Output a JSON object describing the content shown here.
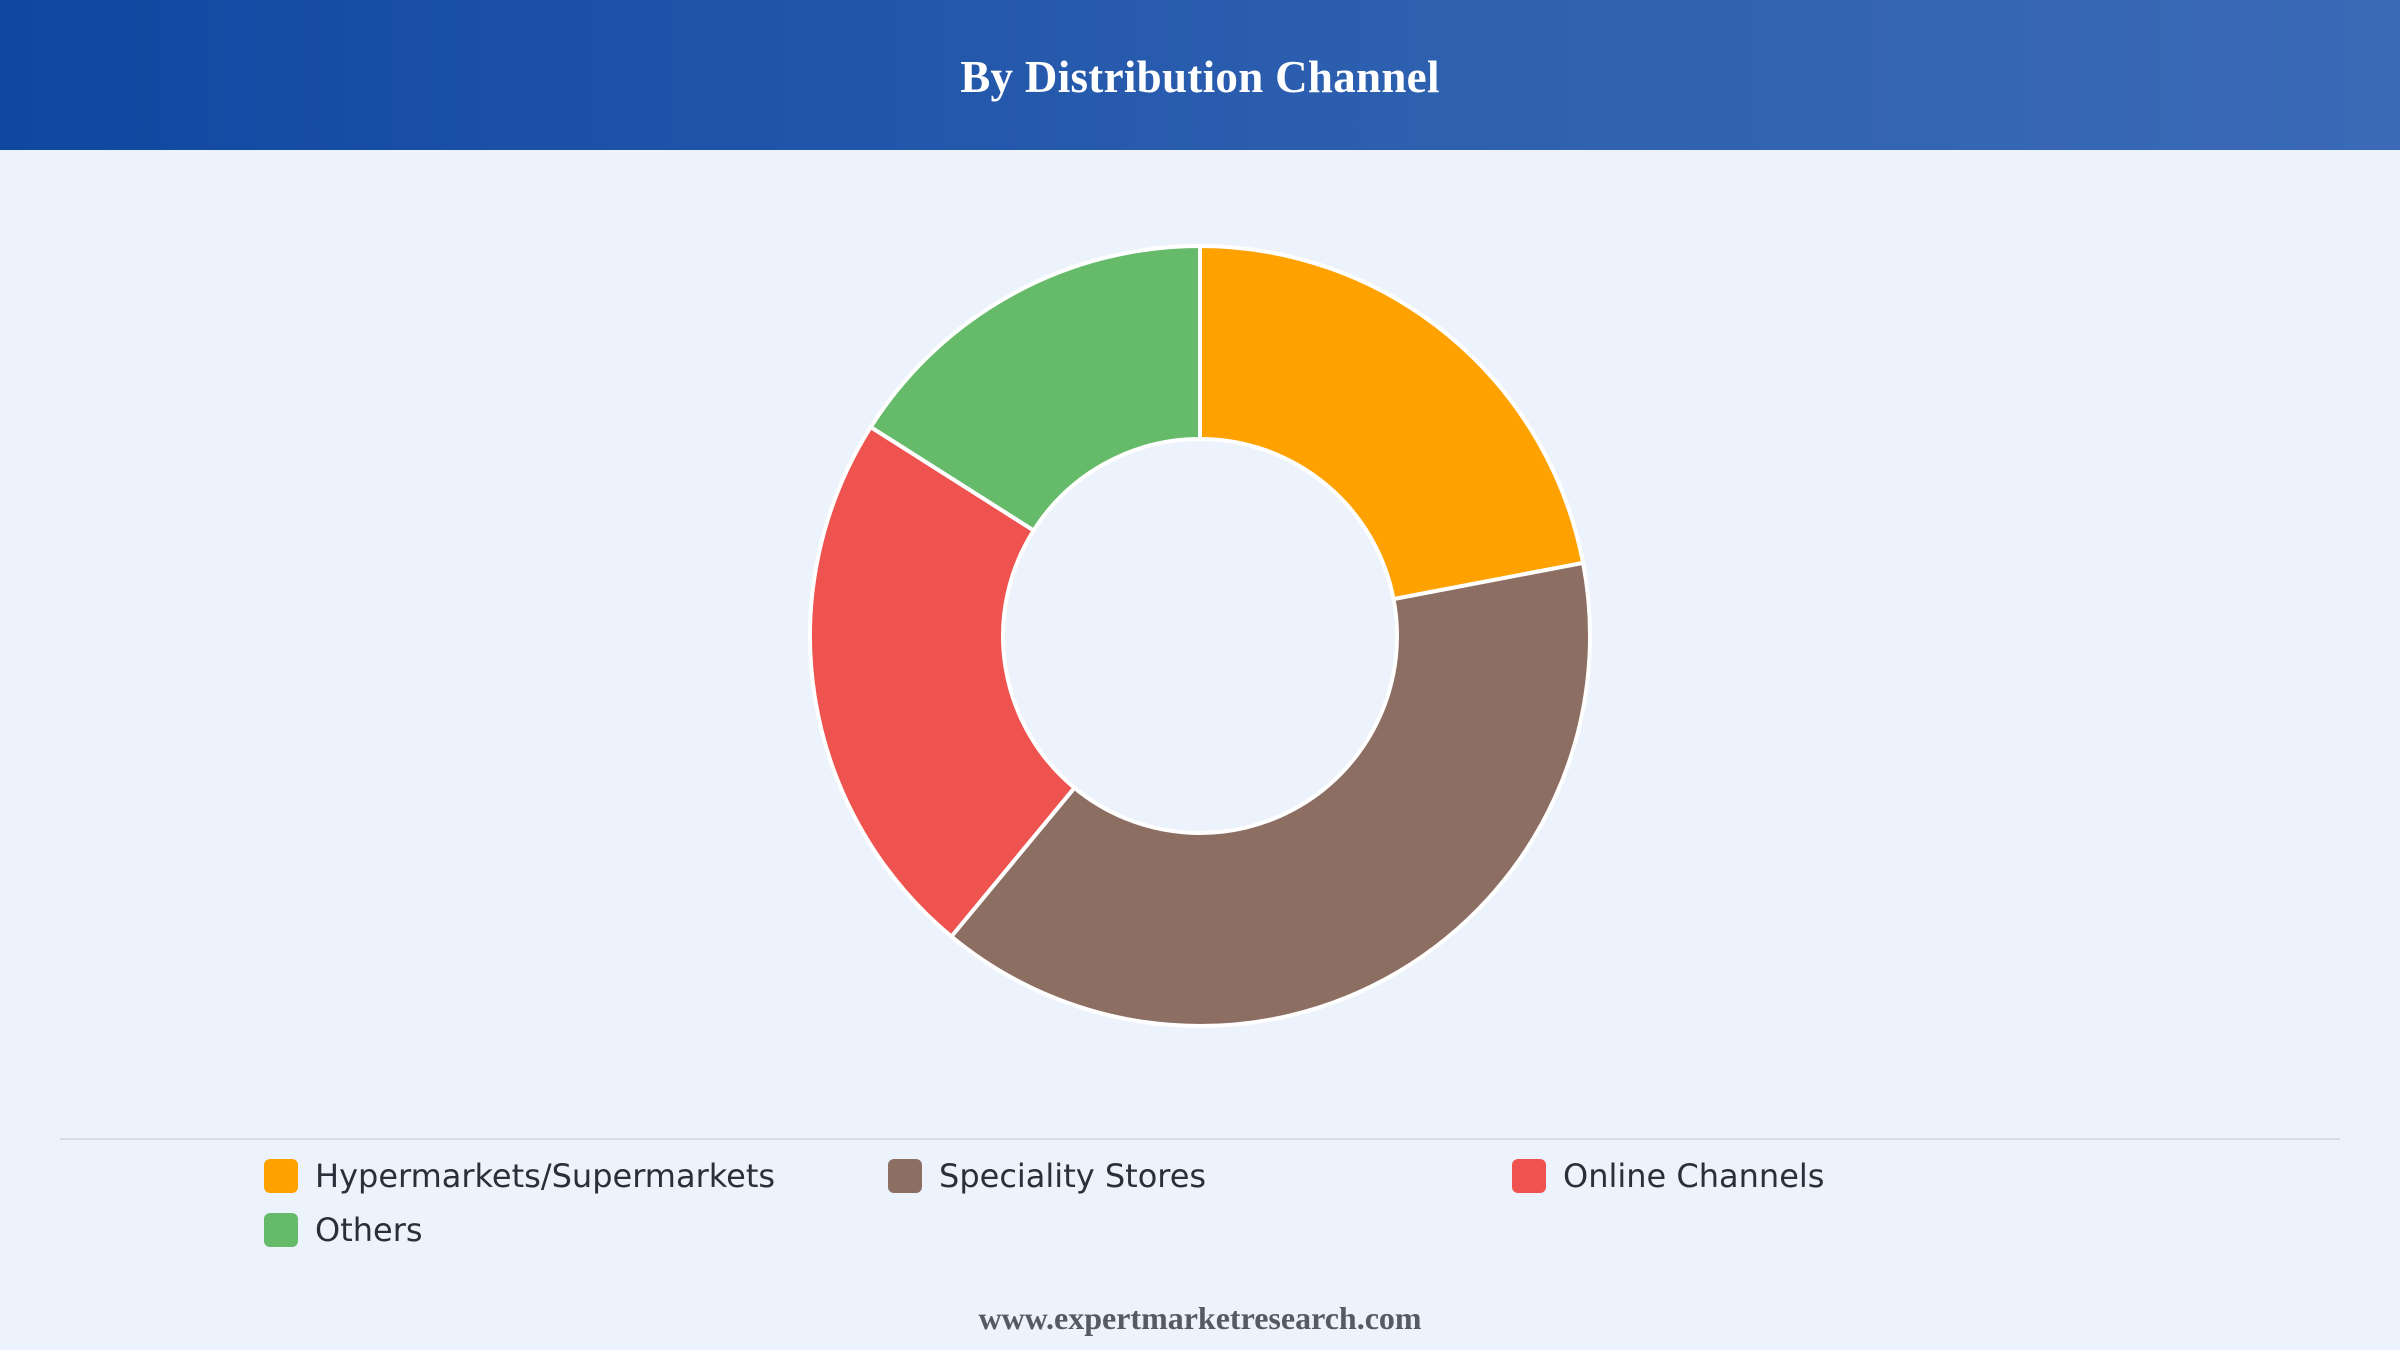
{
  "header": {
    "title": "By Distribution Channel"
  },
  "chart_data": {
    "type": "pie",
    "variant": "donut",
    "title": "By Distribution Channel",
    "categories": [
      "Hypermarkets/Supermarkets",
      "Speciality Stores",
      "Online Channels",
      "Others"
    ],
    "values": [
      22,
      39,
      23,
      16
    ],
    "unit": "%",
    "start_angle_deg": 0,
    "direction": "clockwise",
    "legend_position": "bottom",
    "colors": [
      "#ffa200",
      "#8d6e63",
      "#ef5350",
      "#66bb6a"
    ]
  },
  "legend": {
    "items": [
      {
        "label": "Hypermarkets/Supermarkets",
        "color": "#ffa200"
      },
      {
        "label": "Speciality Stores",
        "color": "#8d6e63"
      },
      {
        "label": "Online Channels",
        "color": "#ef5350"
      },
      {
        "label": "Others",
        "color": "#66bb6a"
      }
    ]
  },
  "footer": {
    "text": "www.expertmarketresearch.com"
  }
}
